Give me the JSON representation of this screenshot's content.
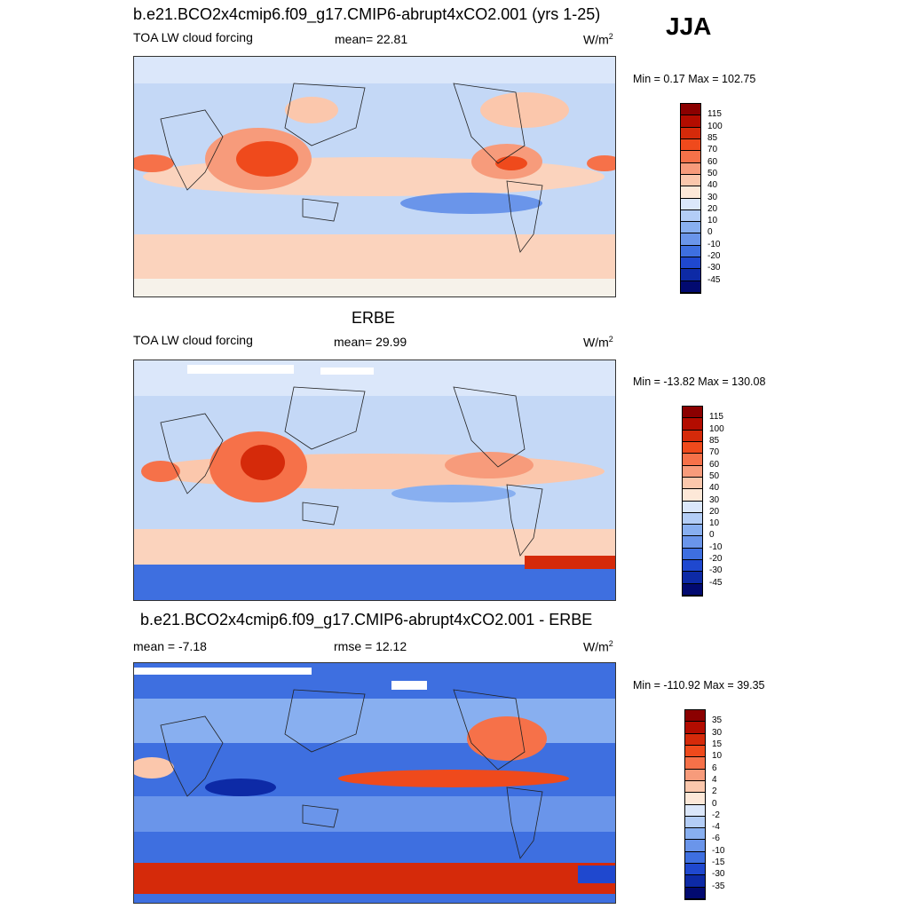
{
  "season": "JJA",
  "panels": [
    {
      "title": "b.e21.BCO2x4cmip6.f09_g17.CMIP6-abrupt4xCO2.001 (yrs 1-25)",
      "variable": "TOA LW cloud forcing",
      "stat": "mean=  22.81",
      "units": "W/m",
      "units_sup": "2",
      "minmax": "Min =   0.17 Max = 102.75",
      "colorbar": {
        "labels": [
          "115",
          "100",
          "85",
          "70",
          "60",
          "50",
          "40",
          "30",
          "20",
          "10",
          "0",
          "-10",
          "-20",
          "-30",
          "-45"
        ],
        "colors": [
          "#8b0000",
          "#b30c00",
          "#d52a0a",
          "#ef4a1c",
          "#f67149",
          "#f79b7b",
          "#fbc7ac",
          "#fde8d8",
          "#dbe7fa",
          "#b3cdf6",
          "#88aff0",
          "#6a95ea",
          "#3e6fe0",
          "#1f48cf",
          "#0d2aa6",
          "#020a70"
        ]
      }
    },
    {
      "title": "ERBE",
      "variable": "TOA LW cloud forcing",
      "stat": "mean=  29.99",
      "units": "W/m",
      "units_sup": "2",
      "minmax": "Min = -13.82 Max = 130.08",
      "colorbar": {
        "labels": [
          "115",
          "100",
          "85",
          "70",
          "60",
          "50",
          "40",
          "30",
          "20",
          "10",
          "0",
          "-10",
          "-20",
          "-30",
          "-45"
        ],
        "colors": [
          "#8b0000",
          "#b30c00",
          "#d52a0a",
          "#ef4a1c",
          "#f67149",
          "#f79b7b",
          "#fbc7ac",
          "#fde8d8",
          "#dbe7fa",
          "#b3cdf6",
          "#88aff0",
          "#6a95ea",
          "#3e6fe0",
          "#1f48cf",
          "#0d2aa6",
          "#020a70"
        ]
      }
    },
    {
      "title": "b.e21.BCO2x4cmip6.f09_g17.CMIP6-abrupt4xCO2.001 - ERBE",
      "variable": "mean =  -7.18",
      "stat": "rmse =  12.12",
      "units": "W/m",
      "units_sup": "2",
      "minmax": "Min = -110.92 Max =  39.35",
      "colorbar": {
        "labels": [
          "35",
          "30",
          "15",
          "10",
          "6",
          "4",
          "2",
          "0",
          "-2",
          "-4",
          "-6",
          "-10",
          "-15",
          "-30",
          "-35"
        ],
        "colors": [
          "#8b0000",
          "#b30c00",
          "#d52a0a",
          "#ef4a1c",
          "#f67149",
          "#f79b7b",
          "#fbc7ac",
          "#fde8d8",
          "#dbe7fa",
          "#b3cdf6",
          "#88aff0",
          "#6a95ea",
          "#3e6fe0",
          "#1f48cf",
          "#0d2aa6",
          "#020a70"
        ]
      }
    }
  ],
  "chart_data": [
    {
      "type": "heatmap",
      "title": "b.e21.BCO2x4cmip6.f09_g17.CMIP6-abrupt4xCO2.001 (yrs 1-25)",
      "variable": "TOA LW cloud forcing",
      "mean": 22.81,
      "min": 0.17,
      "max": 102.75,
      "units": "W/m2",
      "season": "JJA",
      "levels": [
        -45,
        -30,
        -20,
        -10,
        0,
        10,
        20,
        30,
        40,
        50,
        60,
        70,
        85,
        100,
        115
      ]
    },
    {
      "type": "heatmap",
      "title": "ERBE",
      "variable": "TOA LW cloud forcing",
      "mean": 29.99,
      "min": -13.82,
      "max": 130.08,
      "units": "W/m2",
      "season": "JJA",
      "levels": [
        -45,
        -30,
        -20,
        -10,
        0,
        10,
        20,
        30,
        40,
        50,
        60,
        70,
        85,
        100,
        115
      ]
    },
    {
      "type": "heatmap",
      "title": "b.e21.BCO2x4cmip6.f09_g17.CMIP6-abrupt4xCO2.001 - ERBE",
      "mean": -7.18,
      "rmse": 12.12,
      "min": -110.92,
      "max": 39.35,
      "units": "W/m2",
      "season": "JJA",
      "levels": [
        -35,
        -30,
        -15,
        -10,
        -6,
        -4,
        -2,
        0,
        2,
        4,
        6,
        10,
        15,
        30,
        35
      ]
    }
  ]
}
